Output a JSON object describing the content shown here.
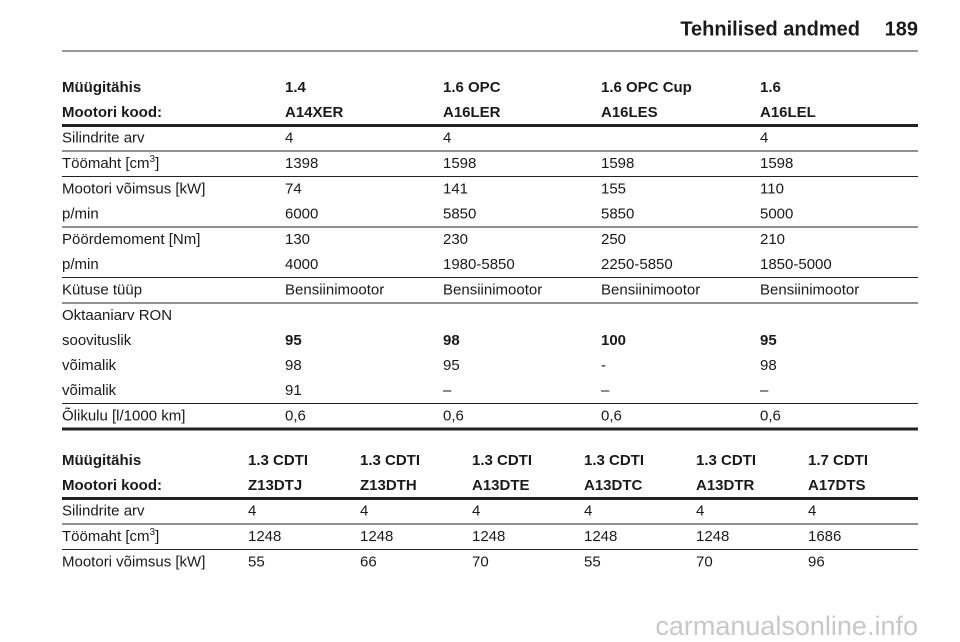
{
  "header": {
    "title": "Tehnilised andmed",
    "page": "189"
  },
  "tables": [
    {
      "groups": [
        {
          "rule": "thick",
          "rows": [
            {
              "style": "header",
              "cells": [
                "Müügitähis",
                "1.4",
                "1.6 OPC",
                "1.6 OPC Cup",
                "1.6"
              ]
            },
            {
              "style": "header",
              "cells": [
                "Mootori kood:",
                "A14XER",
                "A16LER",
                "A16LES",
                "A16LEL"
              ]
            }
          ]
        },
        {
          "rule": "thin",
          "rows": [
            {
              "cells": [
                "Silindrite arv",
                "4",
                "4",
                null,
                "4"
              ]
            }
          ]
        },
        {
          "rule": "thin",
          "rows": [
            {
              "cells": [
                {
                  "text": "Töömaht [cm",
                  "sup": "3",
                  "after": "]"
                },
                "1398",
                "1598",
                "1598",
                "1598"
              ]
            }
          ]
        },
        {
          "rule": "thin",
          "rows": [
            {
              "cells": [
                "Mootori võimsus [kW]",
                "74",
                "141",
                "155",
                "110"
              ]
            },
            {
              "cells": [
                "p/min",
                "6000",
                "5850",
                "5850",
                "5000"
              ]
            }
          ]
        },
        {
          "rule": "thin",
          "rows": [
            {
              "cells": [
                "Pöördemoment [Nm]",
                "130",
                "230",
                "250",
                "210"
              ]
            },
            {
              "cells": [
                "p/min",
                "4000",
                "1980-5850",
                "2250-5850",
                "1850-5000"
              ]
            }
          ]
        },
        {
          "rule": "thin",
          "rows": [
            {
              "cells": [
                "Kütuse tüüp",
                "Bensiinimootor",
                "Bensiinimootor",
                "Bensiinimootor",
                "Bensiinimootor"
              ]
            }
          ]
        },
        {
          "rule": "thin",
          "rows": [
            {
              "cells": [
                "Oktaaniarv RON"
              ]
            },
            {
              "style": "emphasis",
              "cells": [
                "soovituslik",
                "95",
                "98",
                "100",
                "95"
              ]
            },
            {
              "cells": [
                "võimalik",
                "98",
                "95",
                "-",
                "98"
              ]
            },
            {
              "cells": [
                "võimalik",
                "91",
                "–",
                "–",
                "–"
              ]
            }
          ]
        },
        {
          "rule": "thick",
          "rows": [
            {
              "cells": [
                "Õlikulu [l/1000 km]",
                "0,6",
                "0,6",
                "0,6",
                "0,6"
              ]
            }
          ]
        }
      ]
    },
    {
      "groups": [
        {
          "rule": "thick",
          "rows": [
            {
              "style": "header",
              "cells": [
                "Müügitähis",
                "1.3 CDTI",
                "1.3 CDTI",
                "1.3 CDTI",
                "1.3 CDTI",
                "1.3 CDTI",
                "1.7 CDTI"
              ]
            },
            {
              "style": "header",
              "cells": [
                "Mootori kood:",
                "Z13DTJ",
                "Z13DTH",
                "A13DTE",
                "A13DTC",
                "A13DTR",
                "A17DTS"
              ]
            }
          ]
        },
        {
          "rule": "thin",
          "rows": [
            {
              "cells": [
                "Silindrite arv",
                "4",
                "4",
                "4",
                "4",
                "4",
                "4"
              ]
            }
          ]
        },
        {
          "rule": "thin",
          "rows": [
            {
              "cells": [
                {
                  "text": "Töömaht [cm",
                  "sup": "3",
                  "after": "]"
                },
                "1248",
                "1248",
                "1248",
                "1248",
                "1248",
                "1686"
              ]
            }
          ]
        },
        {
          "rows": [
            {
              "cells": [
                "Mootori võimsus [kW]",
                "55",
                "66",
                "70",
                "55",
                "70",
                "96"
              ]
            }
          ]
        }
      ]
    }
  ],
  "watermark": "carmanualsonline.info"
}
